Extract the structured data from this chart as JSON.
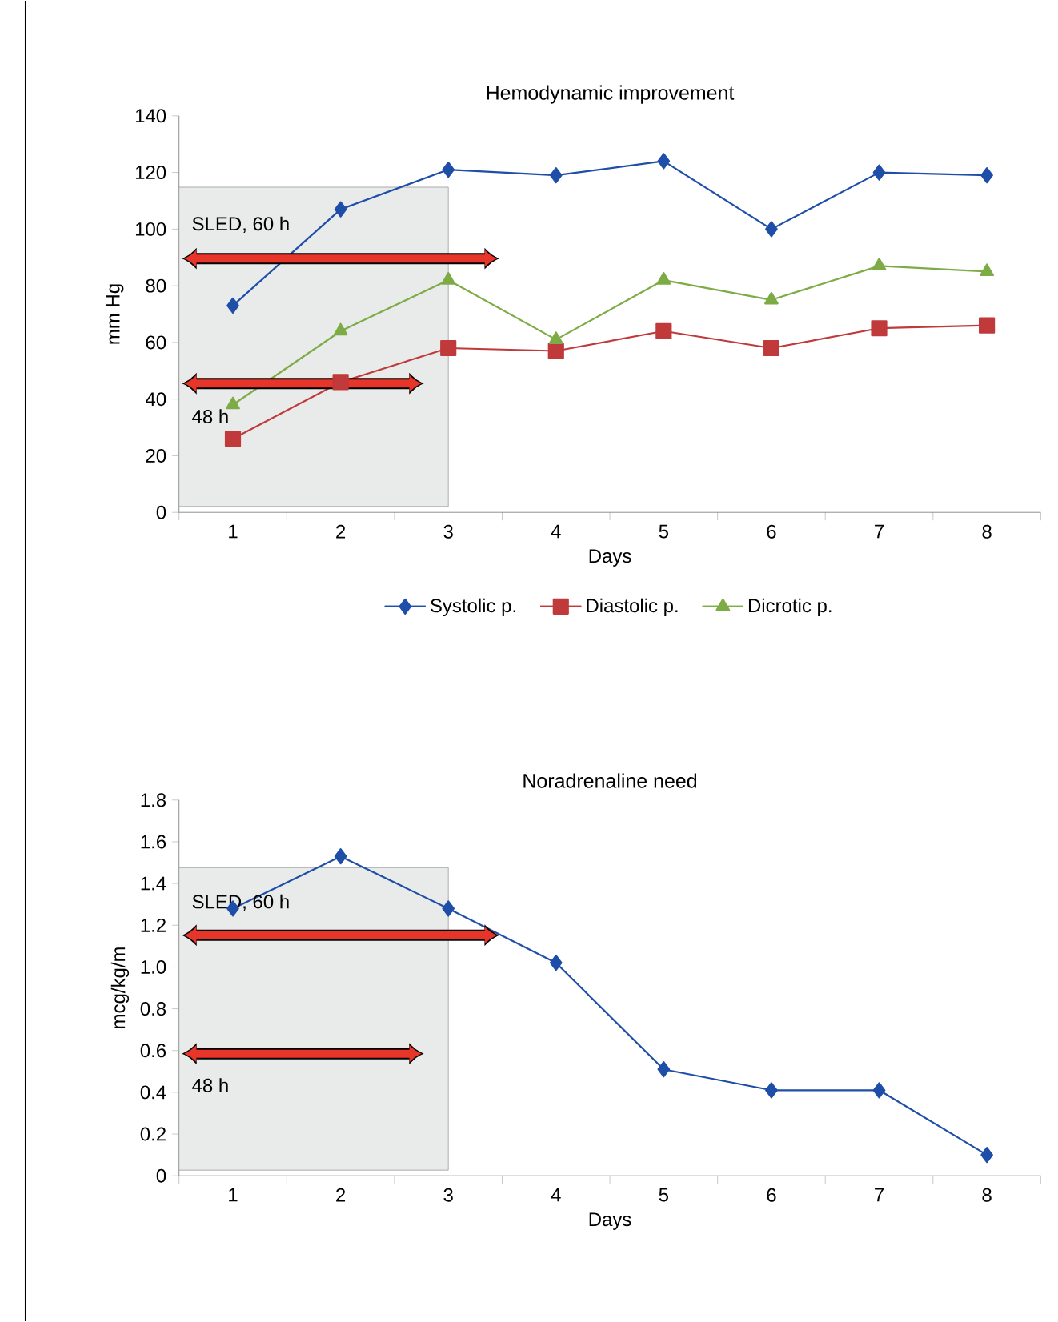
{
  "chart_data": [
    {
      "type": "line",
      "title": "Hemodynamic improvement",
      "xlabel": "Days",
      "ylabel": "mm Hg",
      "categories": [
        "1",
        "2",
        "3",
        "4",
        "5",
        "6",
        "7",
        "8"
      ],
      "series": [
        {
          "name": "Systolic p.",
          "color": "#1f4ea8",
          "marker": "diamond",
          "values": [
            73,
            107,
            121,
            119,
            124,
            100,
            120,
            119
          ]
        },
        {
          "name": "Diastolic p.",
          "color": "#c0393b",
          "marker": "square",
          "values": [
            26,
            46,
            58,
            57,
            64,
            58,
            65,
            66
          ]
        },
        {
          "name": "Dicrotic p.",
          "color": "#7dab45",
          "marker": "triangle",
          "values": [
            38,
            64,
            82,
            61,
            82,
            75,
            87,
            85
          ]
        }
      ],
      "ylim": [
        0,
        140
      ],
      "yticks": [
        0,
        20,
        40,
        60,
        80,
        100,
        120,
        140
      ],
      "legend": "bottom",
      "bands": [
        {
          "axis": "x",
          "from": "1",
          "to": "3",
          "color": "#e9ebea"
        }
      ],
      "annotations": [
        "SLED, 60 h",
        "48 h"
      ]
    },
    {
      "type": "line",
      "title": "Noradrenaline need",
      "xlabel": "Days",
      "ylabel": "mcg/kg/m",
      "categories": [
        "1",
        "2",
        "3",
        "4",
        "5",
        "6",
        "7",
        "8"
      ],
      "series": [
        {
          "color": "#1f4ea8",
          "marker": "diamond",
          "values": [
            1.28,
            1.53,
            1.28,
            1.02,
            0.51,
            0.41,
            0.41,
            0.1
          ]
        }
      ],
      "ylim": [
        0,
        1.8
      ],
      "yticks": [
        0,
        0.2,
        0.4,
        0.6,
        0.8,
        {
          "value": 1.0,
          "label": "1.0"
        },
        1.2,
        1.4,
        1.6,
        1.8
      ],
      "bands": [
        {
          "axis": "x",
          "from": "1",
          "to": "3",
          "color": "#e9ebea"
        }
      ],
      "annotations": [
        "SLED, 60 h",
        "48 h"
      ]
    }
  ]
}
